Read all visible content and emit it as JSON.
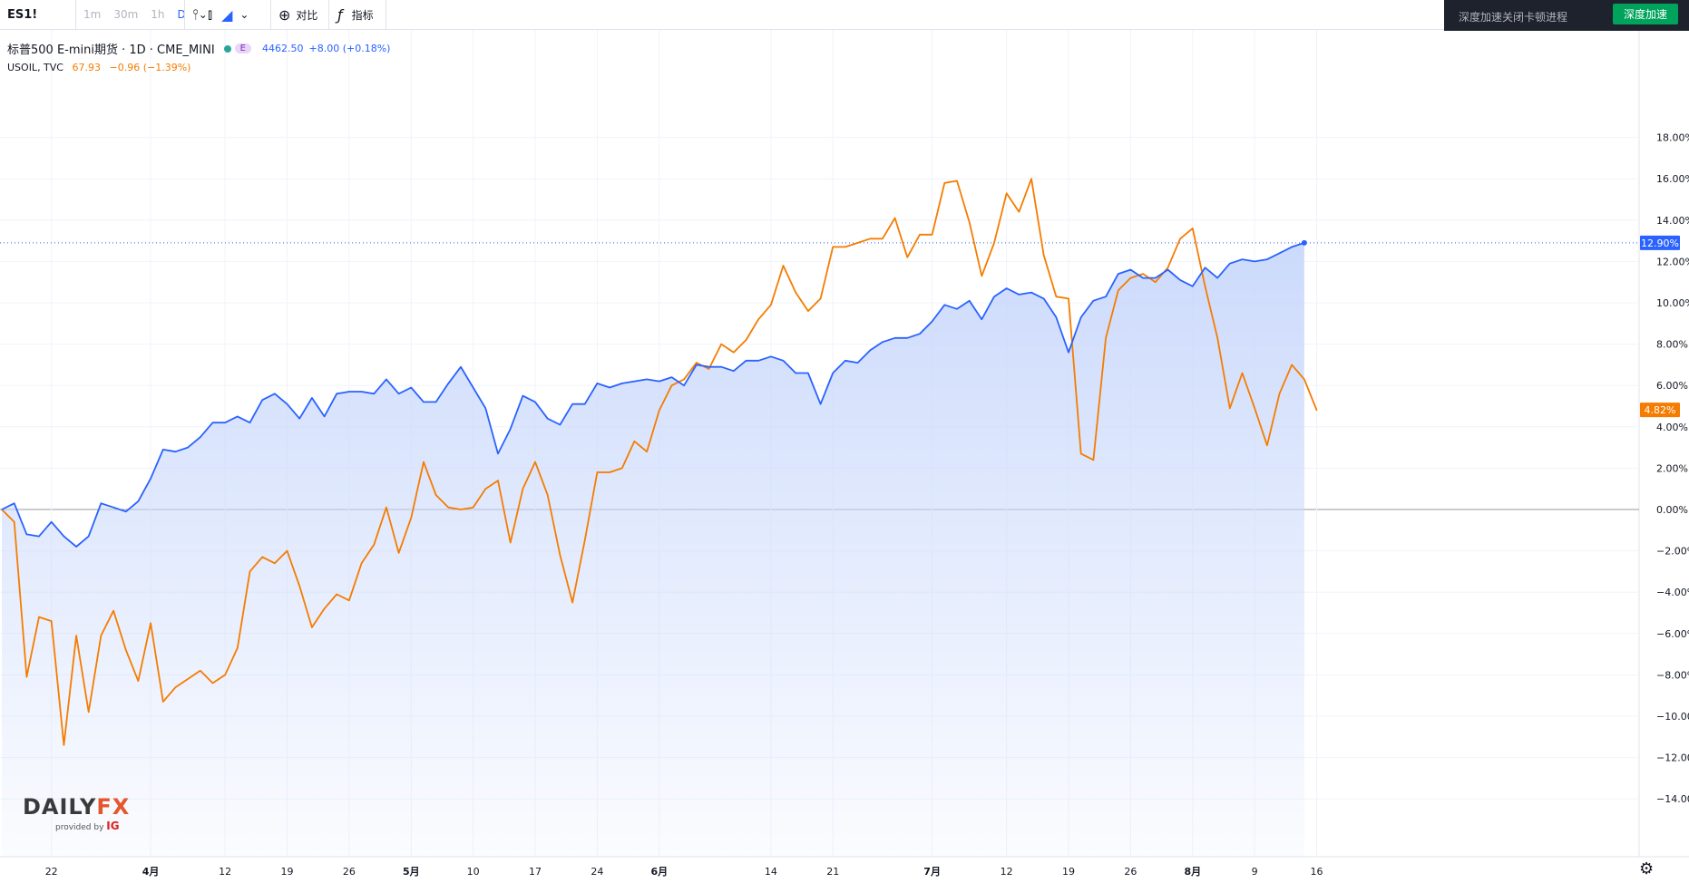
{
  "toolbar": {
    "symbol": "ES1!",
    "intervals": [
      "1m",
      "30m",
      "1h",
      "D"
    ],
    "active_interval": "D",
    "compare_label": "对比",
    "indicators_label": "指标",
    "icons": [
      "chevron-down-icon",
      "bar-style-icon",
      "candle-icon",
      "area-icon",
      "plus-circle-icon",
      "fx-icon"
    ]
  },
  "notice": {
    "text": "深度加速关闭卡顿进程",
    "button": "深度加速"
  },
  "legend": {
    "main_title": "标普500 E-mini期货 · 1D · CME_MINI",
    "main_badge": "E",
    "main_value": "4462.50",
    "main_change": "+8.00 (+0.18%)",
    "compare_title": "USOIL, TVC",
    "compare_value": "67.93",
    "compare_change": "−0.96 (−1.39%)"
  },
  "logo": {
    "brand_left": "DAILY",
    "brand_right": "FX",
    "provided_by": "provided by",
    "ig": "IG"
  },
  "colors": {
    "es": "#2962ff",
    "usoil": "#f57c00",
    "area": "#dbe6fd"
  },
  "chart_data": {
    "type": "line",
    "y_unit": "%",
    "ylim": [
      -14,
      18
    ],
    "y_ticks": [
      18,
      16,
      14,
      12,
      10,
      8,
      6,
      4,
      2,
      0,
      -2,
      -4,
      -6,
      -8,
      -10,
      -12,
      -14
    ],
    "y_tick_labels": [
      "18.00%",
      "16.00%",
      "14.00%",
      "12.00%",
      "10.00%",
      "8.00%",
      "6.00%",
      "4.00%",
      "2.00%",
      "0.00%",
      "−2.00%",
      "−4.00%",
      "−6.00%",
      "−8.00%",
      "−10.00%",
      "−12.00%",
      "−14.00%"
    ],
    "x_ticks": [
      {
        "label": "22",
        "i": 4
      },
      {
        "label": "4月",
        "i": 12
      },
      {
        "label": "12",
        "i": 18
      },
      {
        "label": "19",
        "i": 23
      },
      {
        "label": "26",
        "i": 28
      },
      {
        "label": "5月",
        "i": 33
      },
      {
        "label": "10",
        "i": 38
      },
      {
        "label": "17",
        "i": 43
      },
      {
        "label": "24",
        "i": 48
      },
      {
        "label": "6月",
        "i": 53
      },
      {
        "label": "14",
        "i": 62
      },
      {
        "label": "21",
        "i": 67
      },
      {
        "label": "7月",
        "i": 75
      },
      {
        "label": "12",
        "i": 81
      },
      {
        "label": "19",
        "i": 86
      },
      {
        "label": "26",
        "i": 91
      },
      {
        "label": "8月",
        "i": 96
      },
      {
        "label": "9",
        "i": 101
      },
      {
        "label": "16",
        "i": 106
      }
    ],
    "series": [
      {
        "name": "ES1!",
        "color": "#2962ff",
        "values": [
          0.0,
          0.3,
          -1.2,
          -1.3,
          -0.6,
          -1.3,
          -1.8,
          -1.3,
          0.3,
          0.1,
          -0.1,
          0.4,
          1.5,
          2.9,
          2.8,
          3.0,
          3.5,
          4.2,
          4.2,
          4.5,
          4.2,
          5.3,
          5.6,
          5.1,
          4.4,
          5.4,
          4.5,
          5.6,
          5.7,
          5.7,
          5.6,
          6.3,
          5.6,
          5.9,
          5.2,
          5.2,
          6.1,
          6.9,
          5.9,
          4.9,
          2.7,
          3.9,
          5.5,
          5.2,
          4.4,
          4.1,
          5.1,
          5.1,
          6.1,
          5.9,
          6.1,
          6.2,
          6.3,
          6.2,
          6.4,
          6.0,
          7.0,
          6.9,
          6.9,
          6.7,
          7.2,
          7.2,
          7.4,
          7.2,
          6.6,
          6.6,
          5.1,
          6.6,
          7.2,
          7.1,
          7.7,
          8.1,
          8.3,
          8.3,
          8.5,
          9.1,
          9.9,
          9.7,
          10.1,
          9.2,
          10.3,
          10.7,
          10.4,
          10.5,
          10.2,
          9.3,
          7.6,
          9.3,
          10.1,
          10.3,
          11.4,
          11.6,
          11.2,
          11.2,
          11.6,
          11.1,
          10.8,
          11.7,
          11.2,
          11.9,
          12.1,
          12.0,
          12.1,
          12.4,
          12.7,
          12.9
        ]
      },
      {
        "name": "USOIL",
        "color": "#f57c00",
        "values": [
          0.0,
          -0.6,
          -8.1,
          -5.2,
          -5.4,
          -11.4,
          -6.1,
          -9.8,
          -6.1,
          -4.9,
          -6.8,
          -8.3,
          -5.5,
          -9.3,
          -8.6,
          -8.2,
          -7.8,
          -8.4,
          -8.0,
          -6.7,
          -3.0,
          -2.3,
          -2.6,
          -2.0,
          -3.7,
          -5.7,
          -4.8,
          -4.1,
          -4.4,
          -2.6,
          -1.7,
          0.1,
          -2.1,
          -0.4,
          2.3,
          0.7,
          0.1,
          0.0,
          0.1,
          1.0,
          1.4,
          -1.6,
          1.0,
          2.3,
          0.7,
          -2.2,
          -4.5,
          -1.5,
          1.8,
          1.8,
          2.0,
          3.3,
          2.8,
          4.8,
          6.0,
          6.3,
          7.1,
          6.8,
          8.0,
          7.6,
          8.2,
          9.2,
          9.9,
          11.8,
          10.5,
          9.6,
          10.2,
          12.7,
          12.7,
          12.9,
          13.1,
          13.1,
          14.1,
          12.2,
          13.3,
          13.3,
          15.8,
          15.9,
          13.9,
          11.3,
          12.9,
          15.3,
          14.4,
          16.0,
          12.3,
          10.3,
          10.2,
          2.7,
          2.4,
          8.3,
          10.6,
          11.2,
          11.4,
          11.0,
          11.7,
          13.1,
          13.6,
          10.8,
          8.3,
          4.9,
          6.6,
          4.9,
          3.1,
          5.6,
          7.0,
          6.3,
          4.8
        ]
      }
    ],
    "last_labels": [
      {
        "series": "ES1!",
        "value": 12.9,
        "text": "12.90%"
      },
      {
        "series": "USOIL",
        "value": 4.82,
        "text": "4.82%"
      }
    ],
    "grid": true
  }
}
